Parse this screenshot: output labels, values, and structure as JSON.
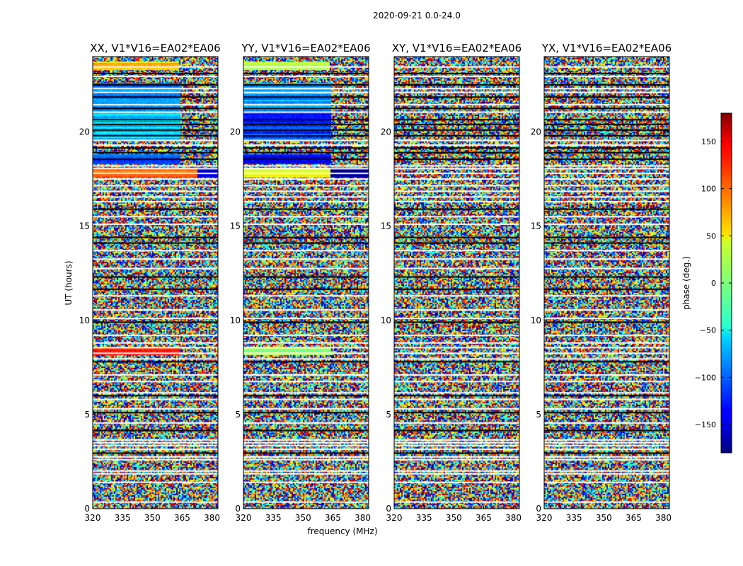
{
  "figure": {
    "suptitle": "2020-09-21 0.0-24.0",
    "xlabel": "frequency (MHz)",
    "ylabel": "UT (hours)"
  },
  "chart_data": {
    "type": "heatmap",
    "colormap": "jet",
    "panels": [
      {
        "title": "XX, V1*V16=EA02*EA06",
        "pol": "XX"
      },
      {
        "title": "YY, V1*V16=EA02*EA06",
        "pol": "YY"
      },
      {
        "title": "XY, V1*V16=EA02*EA06",
        "pol": "XY"
      },
      {
        "title": "YX, V1*V16=EA02*EA06",
        "pol": "YX"
      }
    ],
    "xlim": [
      320,
      383
    ],
    "x_ticks": [
      320,
      335,
      350,
      365,
      380
    ],
    "ylim": [
      0,
      24
    ],
    "y_ticks": [
      0,
      5,
      10,
      15,
      20
    ],
    "colorbar": {
      "label": "phase (deg.)",
      "range": [
        -180,
        180
      ],
      "ticks": [
        -150,
        -100,
        -50,
        0,
        50,
        100,
        150
      ],
      "tick_labels": [
        "−150",
        "−100",
        "−50",
        "0",
        "50",
        "100",
        "150"
      ]
    },
    "flagged_hours": [
      0.35,
      1.4,
      1.85,
      2.0,
      2.6,
      2.75,
      2.95,
      3.15,
      3.35,
      3.5,
      3.65,
      4.15,
      4.55,
      5.1,
      5.3,
      5.8,
      6.0,
      6.15,
      6.75,
      7.1,
      7.8,
      7.95,
      8.25,
      8.55,
      8.8,
      9.2,
      9.9,
      10.1,
      10.55,
      11.3,
      11.65,
      12.3,
      12.75,
      13.25,
      13.7,
      14.1,
      14.4,
      15.1,
      15.5,
      15.9,
      16.3,
      16.55,
      16.85,
      17.15,
      17.5,
      17.8,
      18.05,
      18.2,
      18.55,
      18.9,
      19.15,
      19.3,
      19.55,
      19.8,
      20.1,
      20.4,
      20.65,
      21.05,
      21.25,
      21.45,
      21.85,
      22.1,
      22.3,
      22.5,
      22.95,
      23.1,
      23.45
    ],
    "coherent_segments": [
      {
        "panel": "XX",
        "t0": 21.0,
        "t1": 22.6,
        "phase": -90,
        "split_freq": 364,
        "phase_high": null
      },
      {
        "panel": "XX",
        "t0": 19.6,
        "t1": 21.0,
        "phase": -60,
        "split_freq": 364,
        "phase_high": null
      },
      {
        "panel": "XX",
        "t0": 23.3,
        "t1": 23.7,
        "phase": 70,
        "split_freq": 363,
        "phase_high": null
      },
      {
        "panel": "XX",
        "t0": 18.3,
        "t1": 18.8,
        "phase": -100,
        "split_freq": 364,
        "phase_high": null
      },
      {
        "panel": "XX",
        "t0": 17.6,
        "t1": 18.1,
        "phase": 100,
        "split_freq": 373,
        "phase_high": -150
      },
      {
        "panel": "XX",
        "t0": 8.2,
        "t1": 8.5,
        "phase": 120,
        "split_freq": 364,
        "phase_high": null
      },
      {
        "panel": "YY",
        "t0": 21.0,
        "t1": 22.6,
        "phase": -80,
        "split_freq": 364,
        "phase_high": null
      },
      {
        "panel": "YY",
        "t0": 19.6,
        "t1": 21.0,
        "phase": -110,
        "split_freq": 364,
        "phase_high": null
      },
      {
        "panel": "YY",
        "t0": 23.3,
        "t1": 23.7,
        "phase": 20,
        "split_freq": 363,
        "phase_high": null
      },
      {
        "panel": "YY",
        "t0": 18.3,
        "t1": 18.8,
        "phase": -130,
        "split_freq": 364,
        "phase_high": null
      },
      {
        "panel": "YY",
        "t0": 17.6,
        "t1": 18.1,
        "phase": 40,
        "split_freq": 364,
        "phase_high": -170
      },
      {
        "panel": "YY",
        "t0": 8.2,
        "t1": 8.5,
        "phase": 10,
        "split_freq": 364,
        "phase_high": null
      }
    ]
  }
}
